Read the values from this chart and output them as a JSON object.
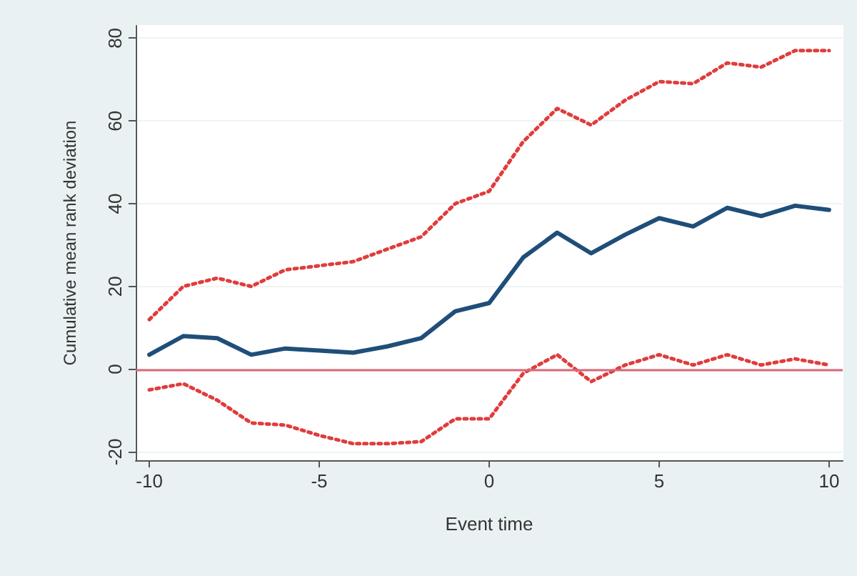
{
  "chart_data": {
    "type": "line",
    "xlabel": "Event time",
    "ylabel": "Cumulative mean rank deviation",
    "x": [
      -10,
      -9,
      -8,
      -7,
      -6,
      -5,
      -4,
      -3,
      -2,
      -1,
      0,
      1,
      2,
      3,
      4,
      5,
      6,
      7,
      8,
      9,
      10
    ],
    "series": [
      {
        "color": "#1f4e79",
        "line_style": "solid",
        "values": [
          3.5,
          8,
          7.5,
          3.5,
          5,
          4.5,
          4,
          5.5,
          7.5,
          14,
          16,
          27,
          33,
          28,
          32.5,
          36.5,
          34.5,
          39,
          37,
          39.5,
          38.5
        ]
      },
      {
        "color": "#e03c3c",
        "line_style": "dotted",
        "values": [
          12,
          20,
          22,
          20,
          24,
          25,
          26,
          29,
          32,
          40,
          43,
          55,
          63,
          59,
          65,
          69.5,
          69,
          74,
          73,
          77,
          77
        ]
      },
      {
        "color": "#e03c3c",
        "line_style": "dotted",
        "values": [
          -5,
          -3.5,
          -7.5,
          -13,
          -13.5,
          -16,
          -18,
          -18,
          -17.5,
          -12,
          -12,
          -1,
          3.5,
          -3,
          1,
          3.5,
          1,
          3.5,
          1,
          2.5,
          1
        ]
      }
    ],
    "ref_lines": [
      {
        "axis": "y",
        "value": 0,
        "color": "#d9697a"
      }
    ],
    "xlim": [
      -10.4,
      10.4
    ],
    "xticks": [
      -10,
      -5,
      0,
      5,
      10
    ],
    "ylim": [
      -22,
      83
    ],
    "yticks": [
      -20,
      0,
      20,
      40,
      60,
      80
    ],
    "grid": "y",
    "legend": false,
    "marker": "none"
  }
}
